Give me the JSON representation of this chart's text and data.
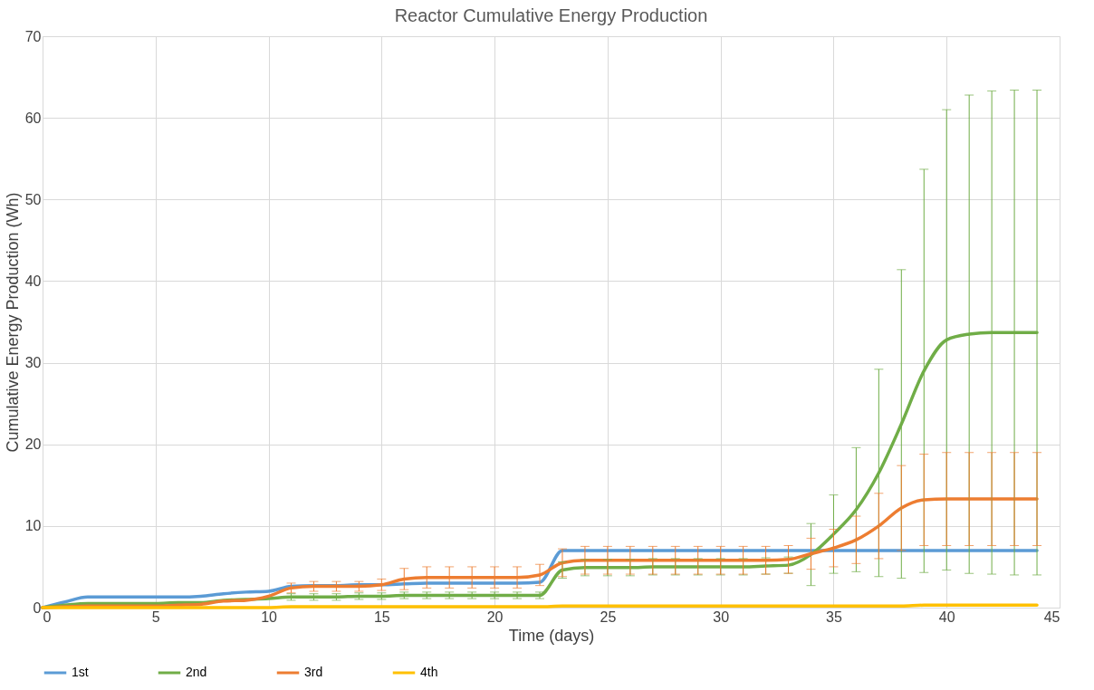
{
  "chart_data": {
    "type": "line",
    "title": "Reactor Cumulative Energy Production",
    "xlabel": "Time (days)",
    "ylabel": "Cumulative Energy Production (Wh)",
    "x": [
      0,
      1,
      2,
      3,
      4,
      5,
      6,
      7,
      8,
      9,
      10,
      11,
      12,
      13,
      14,
      15,
      16,
      17,
      18,
      19,
      20,
      21,
      22,
      23,
      24,
      25,
      26,
      27,
      28,
      29,
      30,
      31,
      32,
      33,
      34,
      35,
      36,
      37,
      38,
      39,
      40,
      41,
      42,
      43,
      44
    ],
    "series": [
      {
        "name": "1st",
        "color": "#5b9bd5",
        "values": [
          0,
          0.7,
          1.3,
          1.3,
          1.3,
          1.3,
          1.3,
          1.4,
          1.7,
          1.9,
          2.0,
          2.6,
          2.7,
          2.7,
          2.8,
          2.8,
          2.9,
          3.0,
          3.0,
          3.0,
          3.0,
          3.0,
          3.1,
          7.0,
          7.0,
          7.0,
          7.0,
          7.0,
          7.0,
          7.0,
          7.0,
          7.0,
          7.0,
          7.0,
          7.0,
          7.0,
          7.0,
          7.0,
          7.0,
          7.0,
          7.0,
          7.0,
          7.0,
          7.0,
          7.0
        ]
      },
      {
        "name": "2nd",
        "color": "#70ad47",
        "values": [
          0,
          0.3,
          0.5,
          0.5,
          0.5,
          0.5,
          0.6,
          0.6,
          0.9,
          1.0,
          1.1,
          1.3,
          1.3,
          1.3,
          1.4,
          1.4,
          1.5,
          1.5,
          1.5,
          1.5,
          1.5,
          1.5,
          1.5,
          4.6,
          4.9,
          4.9,
          4.9,
          5.0,
          5.0,
          5.0,
          5.0,
          5.0,
          5.1,
          5.2,
          6.5,
          9.0,
          12.0,
          16.5,
          22.5,
          29.0,
          32.8,
          33.5,
          33.7,
          33.7,
          33.7
        ],
        "errors": [
          null,
          null,
          null,
          null,
          null,
          null,
          null,
          null,
          null,
          null,
          null,
          0.4,
          0.4,
          0.4,
          0.4,
          0.4,
          0.4,
          0.4,
          0.4,
          0.4,
          0.4,
          0.4,
          0.4,
          1.0,
          1.0,
          1.0,
          1.0,
          1.0,
          1.0,
          1.0,
          1.0,
          1.0,
          1.0,
          1.0,
          3.8,
          4.8,
          7.6,
          12.7,
          18.9,
          24.7,
          28.2,
          29.3,
          29.6,
          29.7,
          29.7
        ]
      },
      {
        "name": "3rd",
        "color": "#ed7d31",
        "values": [
          0,
          0.1,
          0.2,
          0.2,
          0.2,
          0.2,
          0.3,
          0.4,
          0.8,
          0.9,
          1.4,
          2.4,
          2.6,
          2.6,
          2.6,
          2.8,
          3.5,
          3.7,
          3.7,
          3.7,
          3.7,
          3.7,
          4.0,
          5.5,
          5.8,
          5.8,
          5.8,
          5.8,
          5.8,
          5.8,
          5.8,
          5.8,
          5.8,
          5.9,
          6.6,
          7.3,
          8.3,
          10.0,
          12.2,
          13.2,
          13.3,
          13.3,
          13.3,
          13.3,
          13.3
        ],
        "errors": [
          null,
          null,
          null,
          null,
          null,
          null,
          null,
          null,
          null,
          null,
          null,
          0.6,
          0.6,
          0.6,
          0.6,
          0.7,
          1.3,
          1.3,
          1.3,
          1.3,
          1.3,
          1.3,
          1.3,
          1.7,
          1.7,
          1.7,
          1.7,
          1.7,
          1.7,
          1.7,
          1.7,
          1.7,
          1.7,
          1.7,
          1.9,
          2.3,
          2.9,
          4.0,
          5.2,
          5.6,
          5.7,
          5.7,
          5.7,
          5.7,
          5.7
        ]
      },
      {
        "name": "4th",
        "color": "#ffc000",
        "values": [
          0,
          0,
          0,
          0,
          0,
          0,
          0,
          0,
          0,
          0,
          0,
          0.1,
          0.1,
          0.1,
          0.1,
          0.1,
          0.1,
          0.1,
          0.1,
          0.1,
          0.1,
          0.1,
          0.1,
          0.2,
          0.2,
          0.2,
          0.2,
          0.2,
          0.2,
          0.2,
          0.2,
          0.2,
          0.2,
          0.2,
          0.2,
          0.2,
          0.2,
          0.2,
          0.2,
          0.3,
          0.3,
          0.3,
          0.3,
          0.3,
          0.3
        ]
      }
    ],
    "xlim": [
      0,
      45
    ],
    "xticks": [
      0,
      5,
      10,
      15,
      20,
      25,
      30,
      35,
      40,
      45
    ],
    "ylim": [
      0,
      70
    ],
    "yticks": [
      0,
      10,
      20,
      30,
      40,
      50,
      60,
      70
    ],
    "grid": true,
    "legend": "bottom",
    "marker": "none",
    "line_style": "solid"
  }
}
